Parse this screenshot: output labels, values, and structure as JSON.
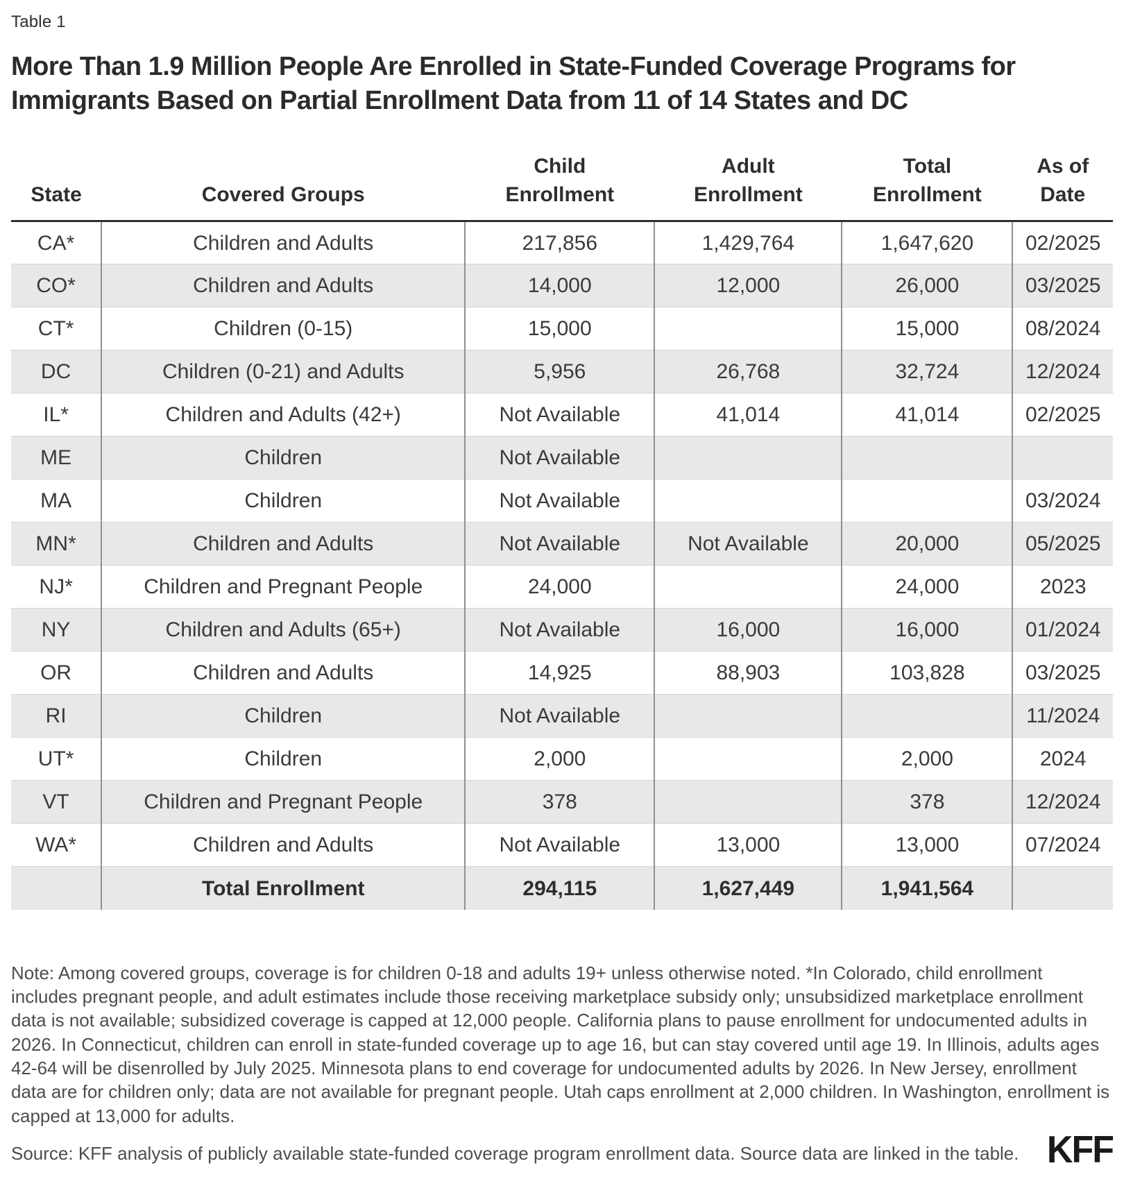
{
  "table_label": "Table 1",
  "chart_data": {
    "type": "table",
    "title": "More Than 1.9 Million People Are Enrolled in State-Funded Coverage Programs for Immigrants Based on Partial Enrollment Data from 11 of 14 States and DC",
    "columns": [
      "State",
      "Covered Groups",
      "Child Enrollment",
      "Adult Enrollment",
      "Total Enrollment",
      "As of Date"
    ],
    "rows": [
      {
        "state": "CA*",
        "groups": "Children and Adults",
        "child": "217,856",
        "adult": "1,429,764",
        "total": "1,647,620",
        "date": "02/2025"
      },
      {
        "state": "CO*",
        "groups": "Children and Adults",
        "child": "14,000",
        "adult": "12,000",
        "total": "26,000",
        "date": "03/2025"
      },
      {
        "state": "CT*",
        "groups": "Children (0-15)",
        "child": "15,000",
        "adult": "",
        "total": "15,000",
        "date": "08/2024"
      },
      {
        "state": "DC",
        "groups": "Children (0-21) and Adults",
        "child": "5,956",
        "adult": "26,768",
        "total": "32,724",
        "date": "12/2024"
      },
      {
        "state": "IL*",
        "groups": "Children and Adults (42+)",
        "child": "Not Available",
        "adult": "41,014",
        "total": "41,014",
        "date": "02/2025"
      },
      {
        "state": "ME",
        "groups": "Children",
        "child": "Not Available",
        "adult": "",
        "total": "",
        "date": ""
      },
      {
        "state": "MA",
        "groups": "Children",
        "child": "Not Available",
        "adult": "",
        "total": "",
        "date": "03/2024"
      },
      {
        "state": "MN*",
        "groups": "Children and Adults",
        "child": "Not Available",
        "adult": "Not Available",
        "total": "20,000",
        "date": "05/2025"
      },
      {
        "state": "NJ*",
        "groups": "Children and Pregnant People",
        "child": "24,000",
        "adult": "",
        "total": "24,000",
        "date": "2023"
      },
      {
        "state": "NY",
        "groups": "Children and Adults (65+)",
        "child": "Not Available",
        "adult": "16,000",
        "total": "16,000",
        "date": "01/2024"
      },
      {
        "state": "OR",
        "groups": "Children and Adults",
        "child": "14,925",
        "adult": "88,903",
        "total": "103,828",
        "date": "03/2025"
      },
      {
        "state": "RI",
        "groups": "Children",
        "child": "Not Available",
        "adult": "",
        "total": "",
        "date": "11/2024"
      },
      {
        "state": "UT*",
        "groups": "Children",
        "child": "2,000",
        "adult": "",
        "total": "2,000",
        "date": "2024"
      },
      {
        "state": "VT",
        "groups": "Children and Pregnant People",
        "child": "378",
        "adult": "",
        "total": "378",
        "date": "12/2024"
      },
      {
        "state": "WA*",
        "groups": "Children and Adults",
        "child": "Not Available",
        "adult": "13,000",
        "total": "13,000",
        "date": "07/2024"
      }
    ],
    "total_row": {
      "state": "",
      "groups": "Total Enrollment",
      "child": "294,115",
      "adult": "1,627,449",
      "total": "1,941,564",
      "date": ""
    }
  },
  "note": "Note: Among covered groups, coverage is for children 0-18 and adults 19+ unless otherwise noted. *In Colorado, child enrollment includes pregnant people, and adult estimates include those receiving marketplace subsidy only; unsubsidized marketplace enrollment data is not available; subsidized coverage is capped at 12,000 people. California plans to pause enrollment for undocumented adults in 2026. In Connecticut, children can enroll in state-funded coverage up to age 16, but can stay covered until age 19. In Illinois, adults ages 42-64 will be disenrolled by July 2025. Minnesota plans to end coverage for undocumented adults by 2026. In New Jersey, enrollment data are for children only; data are not available for pregnant people. Utah caps enrollment at 2,000 children. In Washington, enrollment is capped at 13,000 for adults.",
  "source": "Source: KFF analysis of publicly available state-funded coverage program enrollment data. Source data are linked in the table.",
  "logo": "KFF",
  "colors": {
    "stripe": "#e8e8e8",
    "header_rule": "#2f2f2f",
    "column_divider": "#909090",
    "row_divider": "#d6d6d6",
    "title_text": "#2b2b2b",
    "body_text": "#3a3a3a",
    "note_text": "#4d4d4d",
    "logo_text": "#1a1a1a"
  }
}
